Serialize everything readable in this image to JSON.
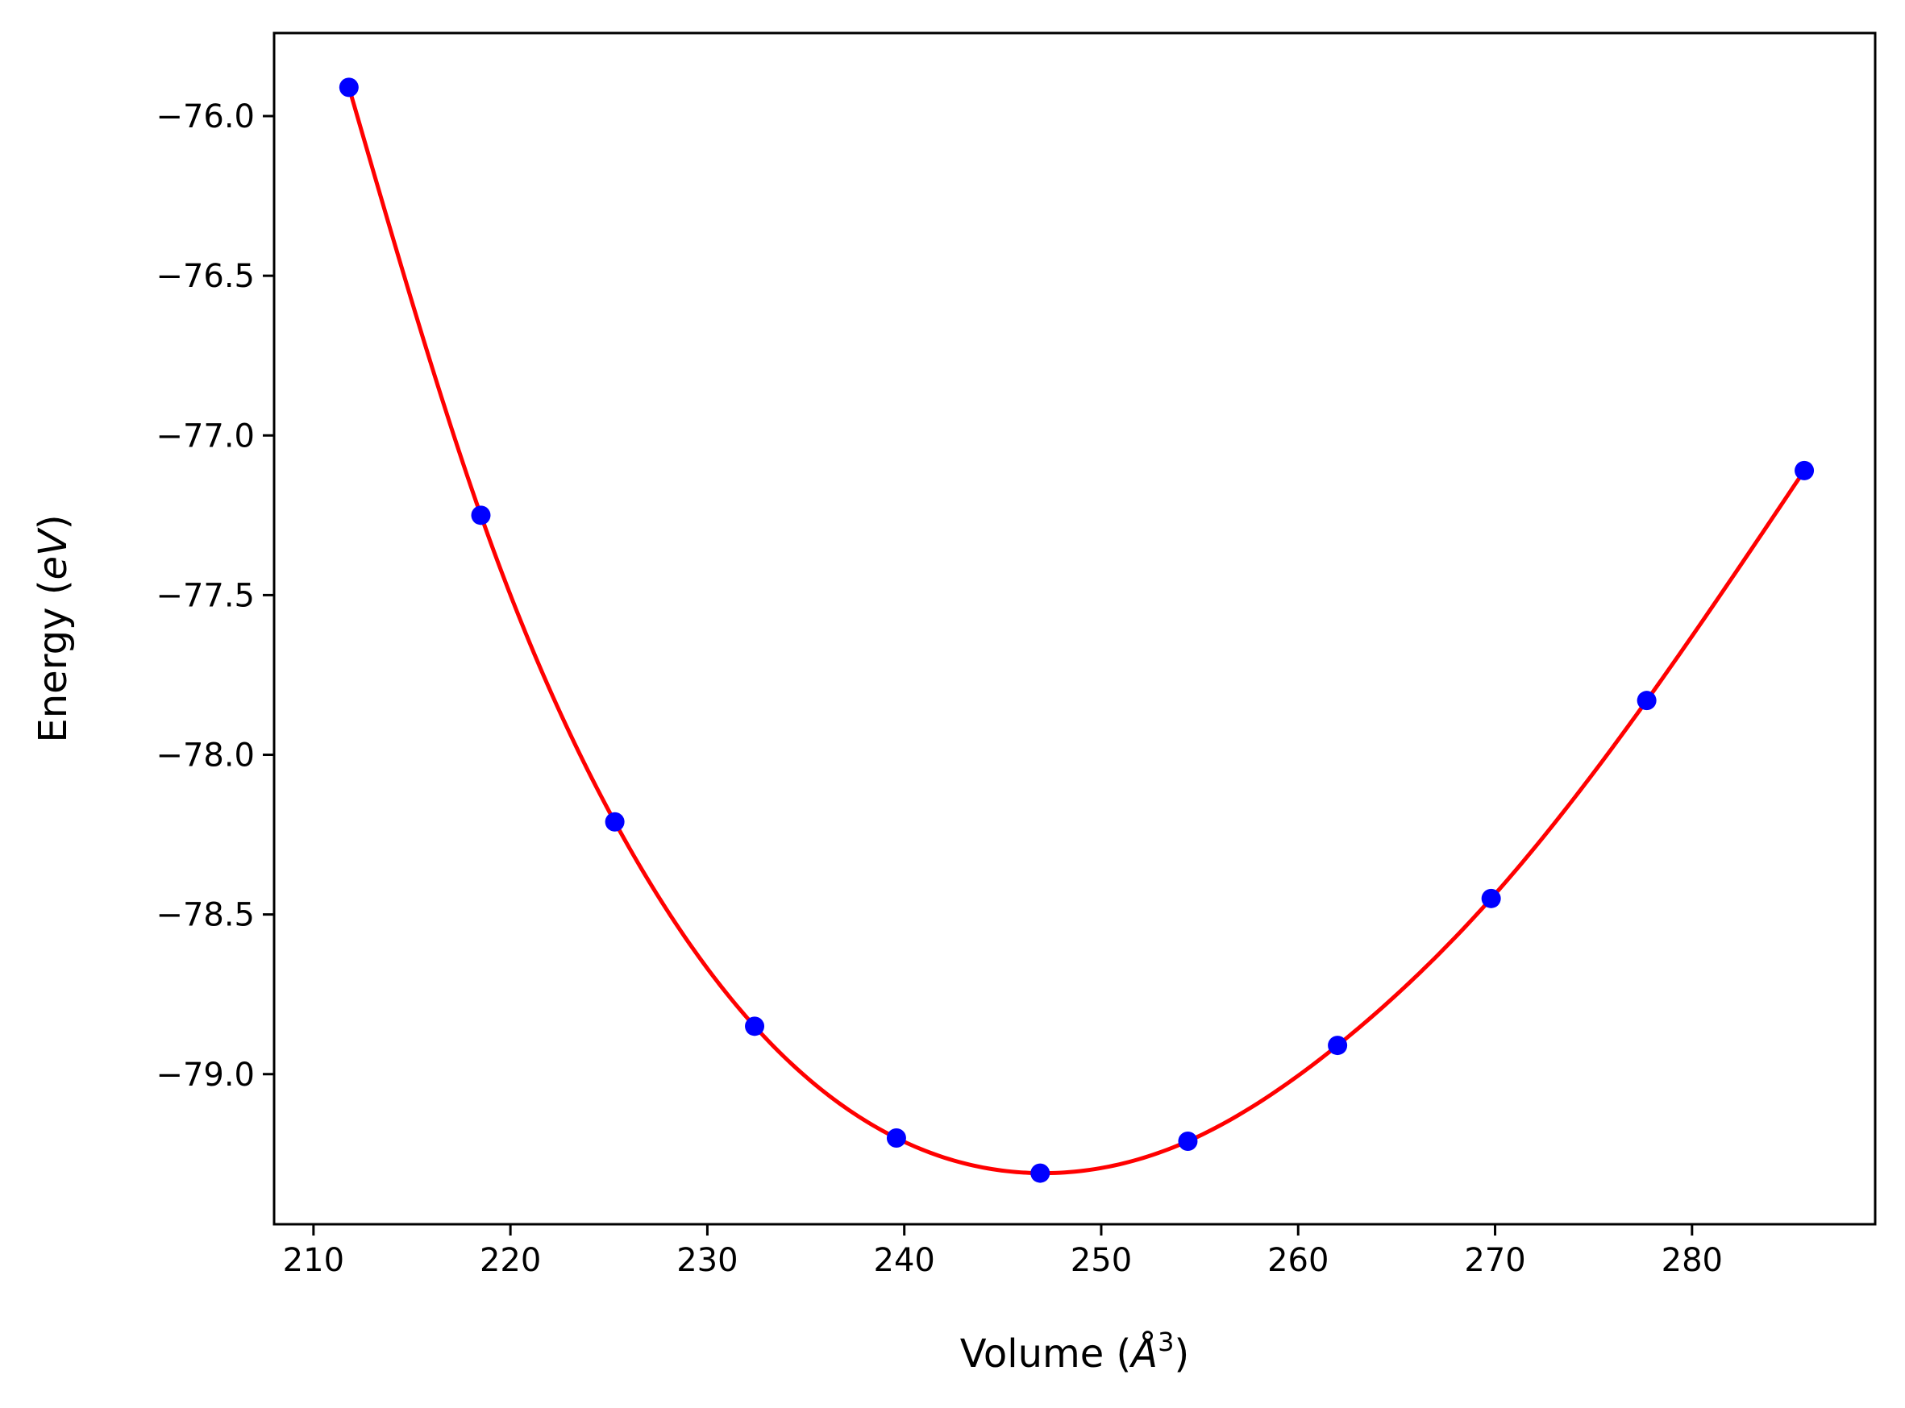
{
  "chart_data": {
    "type": "scatter",
    "xlabel": {
      "prefix": "Volume (",
      "symbol": "Å",
      "sup": "3",
      "suffix": ")"
    },
    "ylabel": {
      "prefix": "Energy (",
      "symbol": "eV",
      "suffix": ")"
    },
    "xlim": [
      208.0,
      289.3
    ],
    "ylim": [
      -79.47,
      -75.74
    ],
    "x_ticks": [
      210,
      220,
      230,
      240,
      250,
      260,
      270,
      280
    ],
    "x_tick_labels": [
      "210",
      "220",
      "230",
      "240",
      "250",
      "260",
      "270",
      "280"
    ],
    "y_ticks": [
      -76.0,
      -76.5,
      -77.0,
      -77.5,
      -78.0,
      -78.5,
      -79.0
    ],
    "y_tick_labels": [
      "−76.0",
      "−76.5",
      "−77.0",
      "−77.5",
      "−78.0",
      "−78.5",
      "−79.0"
    ],
    "grid": false,
    "series": [
      {
        "kind": "points",
        "color": "#0000ff",
        "x": [
          211.8,
          218.5,
          225.3,
          232.4,
          239.6,
          246.9,
          254.4,
          262.0,
          269.8,
          277.7,
          285.7
        ],
        "y": [
          -75.91,
          -77.25,
          -78.21,
          -78.85,
          -79.2,
          -79.31,
          -79.21,
          -78.91,
          -78.45,
          -77.83,
          -77.11
        ]
      },
      {
        "kind": "fit_curve",
        "color": "#ff0000"
      }
    ]
  }
}
